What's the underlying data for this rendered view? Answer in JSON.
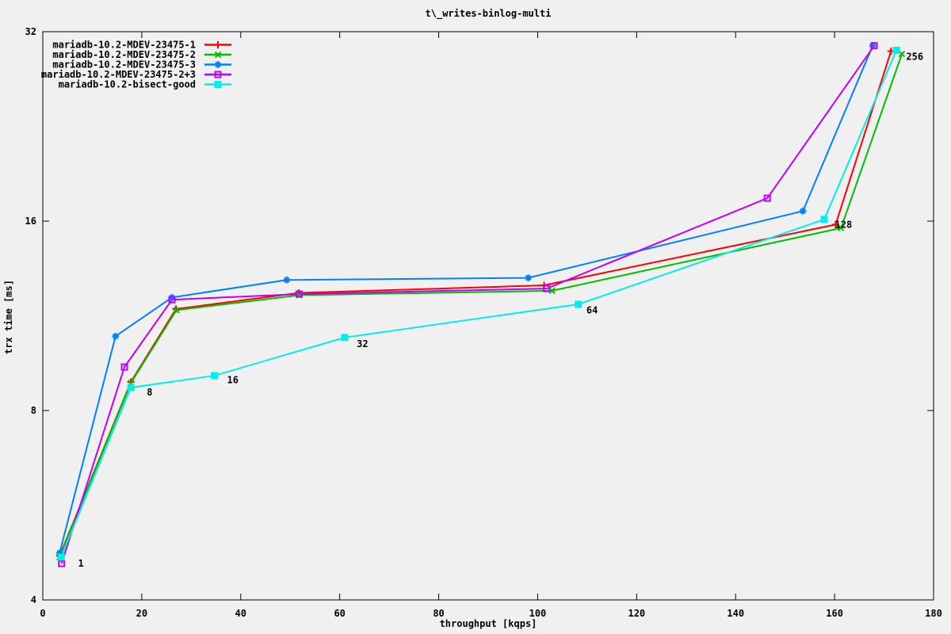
{
  "window": {
    "background": "#f0f0f0",
    "border_color": "#000000"
  },
  "chart_data": {
    "type": "line",
    "title": "t\\_writes-binlog-multi",
    "xlabel": "throughput [kqps]",
    "ylabel": "trx time [ms]",
    "xlim": [
      0,
      180
    ],
    "ylim": [
      4,
      32
    ],
    "y_scale": "log2",
    "grid": "off",
    "legend_position": "top-left-inside",
    "x_ticks": [
      0,
      20,
      40,
      60,
      80,
      100,
      120,
      140,
      160,
      180
    ],
    "y_ticks": [
      4,
      8,
      16,
      32
    ],
    "thread_counts": [
      1,
      8,
      16,
      32,
      64,
      128,
      256
    ],
    "series": [
      {
        "name": "mariadb-10.2-MDEV-23475-1",
        "color": "#ff0000",
        "marker": "plus",
        "points": [
          [
            3.4,
            4.7
          ],
          [
            17.8,
            8.88
          ],
          [
            26.9,
            11.6
          ],
          [
            51.7,
            12.3
          ],
          [
            101.3,
            12.65
          ],
          [
            160.2,
            15.8
          ],
          [
            171.4,
            29.8
          ]
        ]
      },
      {
        "name": "mariadb-10.2-MDEV-23475-2",
        "color": "#00c000",
        "marker": "cross",
        "points": [
          [
            3.4,
            4.68
          ],
          [
            17.8,
            8.85
          ],
          [
            27.0,
            11.55
          ],
          [
            51.8,
            12.2
          ],
          [
            102.9,
            12.4
          ],
          [
            161.3,
            15.6
          ],
          [
            173.6,
            29.5
          ]
        ]
      },
      {
        "name": "mariadb-10.2-MDEV-23475-3",
        "color": "#0080ff",
        "marker": "star",
        "points": [
          [
            3.4,
            4.75
          ],
          [
            14.7,
            10.5
          ],
          [
            26.1,
            12.1
          ],
          [
            49.3,
            12.9
          ],
          [
            98.1,
            13.0
          ],
          [
            153.6,
            16.6
          ],
          [
            167.7,
            30.4
          ]
        ]
      },
      {
        "name": "mariadb-10.2-MDEV-23475-2+3",
        "color": "#c000ff",
        "marker": "open-square",
        "points": [
          [
            3.8,
            4.57
          ],
          [
            16.5,
            9.38
          ],
          [
            26.1,
            12.0
          ],
          [
            51.8,
            12.25
          ],
          [
            101.8,
            12.5
          ],
          [
            146.4,
            17.4
          ],
          [
            168.0,
            30.4
          ]
        ]
      },
      {
        "name": "mariadb-10.2-bisect-good",
        "color": "#00eeee",
        "marker": "filled-square",
        "points": [
          [
            3.7,
            4.68
          ],
          [
            17.8,
            8.7
          ],
          [
            34.7,
            9.09
          ],
          [
            61.0,
            10.45
          ],
          [
            108.2,
            11.8
          ],
          [
            157.9,
            16.1
          ],
          [
            172.5,
            29.9
          ]
        ]
      }
    ],
    "point_labels": [
      {
        "text": "1",
        "x": 7.7,
        "y": 4.57
      },
      {
        "text": "8",
        "x": 21.6,
        "y": 8.55
      },
      {
        "text": "16",
        "x": 38.4,
        "y": 8.95
      },
      {
        "text": "32",
        "x": 64.6,
        "y": 10.2
      },
      {
        "text": "64",
        "x": 111.0,
        "y": 11.55
      },
      {
        "text": "128",
        "x": 161.8,
        "y": 15.8
      },
      {
        "text": "256",
        "x": 176.2,
        "y": 29.2
      }
    ]
  }
}
